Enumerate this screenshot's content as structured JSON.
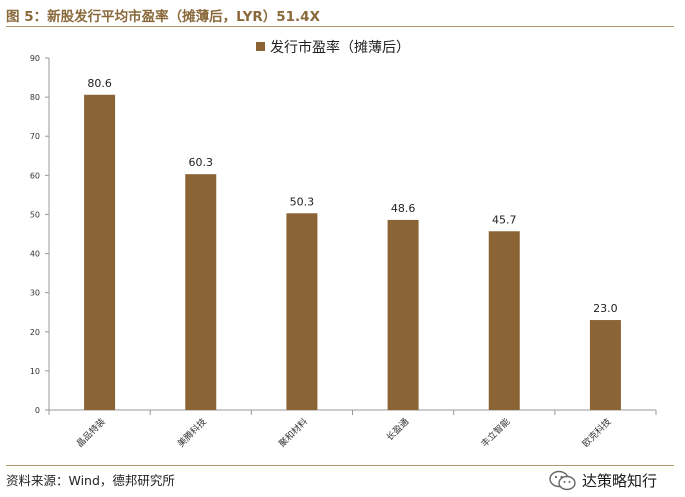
{
  "figure": {
    "title": "图 5：新股发行平均市盈率（摊薄后，LYR）51.4X",
    "source": "资料来源：Wind，德邦研究所",
    "watermark": "达策略知行"
  },
  "colors": {
    "bar": "#8b6436",
    "accent": "#8a6a3c"
  },
  "chart_data": {
    "type": "bar",
    "title": "",
    "xlabel": "",
    "ylabel": "",
    "legend": "top-center",
    "grid": false,
    "ylim": [
      0,
      90
    ],
    "yticks": [
      0,
      10,
      20,
      30,
      40,
      50,
      60,
      70,
      80,
      90
    ],
    "categories": [
      "晶品特装",
      "美腾科技",
      "聚和材料",
      "长盈通",
      "丰立智能",
      "欧克科技"
    ],
    "series": [
      {
        "name": "发行市盈率（摊薄后）",
        "values": [
          80.6,
          60.3,
          50.3,
          48.6,
          45.7,
          23.0
        ]
      }
    ],
    "data_labels": [
      "80.6",
      "60.3",
      "50.3",
      "48.6",
      "45.7",
      "23.0"
    ]
  }
}
